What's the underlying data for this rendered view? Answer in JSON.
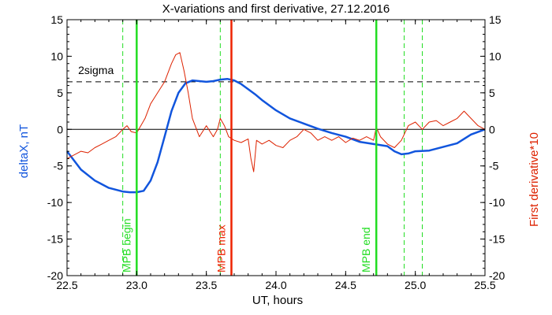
{
  "chart_data": {
    "type": "line",
    "title": "X-variations and first derivative, 27.12.2016",
    "xlabel": "UT, hours",
    "ylabel_left": "deltaX, nT",
    "ylabel_right": "First derivative*10",
    "xlim": [
      22.5,
      25.5
    ],
    "ylim_left": [
      -20,
      15
    ],
    "ylim_right": [
      -20,
      15
    ],
    "x_ticks": [
      "22.5",
      "23.0",
      "23.5",
      "24.0",
      "24.5",
      "25.0",
      "25.5"
    ],
    "y_ticks_left": [
      "15",
      "10",
      "5",
      "0",
      "-5",
      "-10",
      "-15",
      "-20"
    ],
    "y_ticks_right": [
      "15",
      "10",
      "5",
      "0",
      "-5",
      "-10",
      "-15",
      "-20"
    ],
    "grid": false,
    "threshold": {
      "label": "2sigma",
      "value": 6.5
    },
    "zero_line": 0,
    "markers": [
      {
        "label": "MPB begin",
        "x": 23.0,
        "color": "#22dd22"
      },
      {
        "label": "MPB max",
        "x": 23.68,
        "color": "#ee2200"
      },
      {
        "label": "MPB end",
        "x": 24.72,
        "color": "#22dd22"
      }
    ],
    "dashed_markers": [
      22.9,
      23.6,
      24.92,
      25.05
    ],
    "series": [
      {
        "axis": "left",
        "color": "#1155dd",
        "x": [
          22.5,
          22.6,
          22.7,
          22.8,
          22.9,
          22.95,
          23.0,
          23.05,
          23.1,
          23.15,
          23.2,
          23.25,
          23.3,
          23.35,
          23.4,
          23.45,
          23.5,
          23.55,
          23.6,
          23.65,
          23.7,
          23.75,
          23.8,
          23.85,
          23.9,
          24.0,
          24.1,
          24.2,
          24.3,
          24.4,
          24.5,
          24.6,
          24.7,
          24.8,
          24.85,
          24.9,
          24.95,
          25.0,
          25.1,
          25.2,
          25.3,
          25.4,
          25.5
        ],
        "y": [
          -3.0,
          -5.5,
          -7.0,
          -8.0,
          -8.5,
          -8.6,
          -8.6,
          -8.4,
          -7.0,
          -4.5,
          -1.0,
          2.5,
          5.0,
          6.3,
          6.7,
          6.6,
          6.5,
          6.6,
          6.8,
          6.9,
          6.7,
          6.2,
          5.5,
          4.8,
          4.0,
          2.6,
          1.5,
          0.8,
          0.1,
          -0.5,
          -1.0,
          -1.7,
          -2.0,
          -2.3,
          -3.0,
          -3.4,
          -3.3,
          -3.0,
          -2.9,
          -2.4,
          -1.9,
          -0.7,
          0.0
        ]
      },
      {
        "axis": "right",
        "color": "#dd2200",
        "x": [
          22.5,
          22.55,
          22.6,
          22.65,
          22.7,
          22.75,
          22.8,
          22.85,
          22.9,
          22.93,
          22.96,
          23.0,
          23.03,
          23.06,
          23.1,
          23.15,
          23.2,
          23.25,
          23.28,
          23.31,
          23.34,
          23.37,
          23.4,
          23.45,
          23.5,
          23.55,
          23.58,
          23.6,
          23.63,
          23.66,
          23.7,
          23.75,
          23.8,
          23.82,
          23.84,
          23.86,
          23.9,
          23.95,
          24.0,
          24.05,
          24.1,
          24.15,
          24.2,
          24.25,
          24.3,
          24.35,
          24.4,
          24.45,
          24.5,
          24.55,
          24.6,
          24.65,
          24.7,
          24.72,
          24.75,
          24.8,
          24.85,
          24.9,
          24.95,
          25.0,
          25.05,
          25.1,
          25.15,
          25.2,
          25.25,
          25.3,
          25.35,
          25.4,
          25.45,
          25.5
        ],
        "y": [
          -4.0,
          -3.5,
          -3.0,
          -3.2,
          -2.5,
          -2.0,
          -1.5,
          -1.0,
          0.0,
          0.5,
          -0.3,
          -0.5,
          0.5,
          1.5,
          3.5,
          5.0,
          6.5,
          9.0,
          10.2,
          10.5,
          8.0,
          5.0,
          1.5,
          -1.0,
          0.5,
          -1.0,
          0.0,
          1.5,
          0.5,
          -1.0,
          -1.5,
          -1.8,
          -1.3,
          -4.0,
          -5.8,
          -1.5,
          -2.0,
          -1.5,
          -2.2,
          -2.5,
          -1.5,
          -1.0,
          0.0,
          -0.5,
          -1.5,
          -1.0,
          -1.5,
          -1.0,
          -1.8,
          -1.2,
          -1.5,
          -1.0,
          -1.5,
          0.3,
          -1.0,
          -2.0,
          -2.5,
          -1.5,
          0.5,
          1.0,
          0.0,
          1.0,
          1.2,
          0.5,
          1.0,
          1.5,
          2.5,
          1.5,
          0.5,
          0.0
        ]
      }
    ]
  }
}
